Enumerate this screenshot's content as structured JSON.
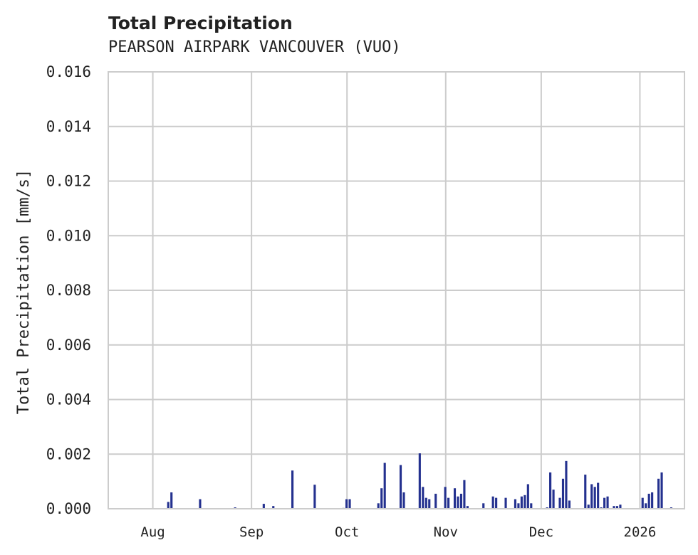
{
  "chart_data": {
    "type": "bar",
    "title": "Total Precipitation",
    "subtitle": "PEARSON AIRPARK  VANCOUVER (VUO)",
    "xlabel": "",
    "ylabel": "Total Precipitation [mm/s]",
    "ylim": [
      0,
      0.016
    ],
    "grid": true,
    "legend": null,
    "color": "#24318f",
    "yticks": [
      "0.000",
      "0.002",
      "0.004",
      "0.006",
      "0.008",
      "0.010",
      "0.012",
      "0.014",
      "0.016"
    ],
    "xticks": [
      "Aug",
      "Sep",
      "Oct",
      "Nov",
      "Dec",
      "2026"
    ],
    "x_domain": [
      "2025-07-18",
      "2026-01-15"
    ],
    "series": [
      {
        "name": "Total Precipitation",
        "points": [
          {
            "date": "2025-08-06",
            "value": 0.00025
          },
          {
            "date": "2025-08-07",
            "value": 0.0006
          },
          {
            "date": "2025-08-16",
            "value": 0.00035
          },
          {
            "date": "2025-08-27",
            "value": 5e-05
          },
          {
            "date": "2025-09-05",
            "value": 0.00018
          },
          {
            "date": "2025-09-08",
            "value": 0.0001
          },
          {
            "date": "2025-09-14",
            "value": 0.0014
          },
          {
            "date": "2025-09-21",
            "value": 0.00088
          },
          {
            "date": "2025-09-30",
            "value": 3e-05
          },
          {
            "date": "2025-10-01",
            "value": 0.00035
          },
          {
            "date": "2025-10-02",
            "value": 0.00035
          },
          {
            "date": "2025-10-11",
            "value": 0.0002
          },
          {
            "date": "2025-10-12",
            "value": 0.00075
          },
          {
            "date": "2025-10-13",
            "value": 0.00168
          },
          {
            "date": "2025-10-18",
            "value": 0.0016
          },
          {
            "date": "2025-10-19",
            "value": 0.0006
          },
          {
            "date": "2025-10-24",
            "value": 0.00203
          },
          {
            "date": "2025-10-25",
            "value": 0.0008
          },
          {
            "date": "2025-10-26",
            "value": 0.0004
          },
          {
            "date": "2025-10-27",
            "value": 0.00035
          },
          {
            "date": "2025-10-29",
            "value": 0.00055
          },
          {
            "date": "2025-11-01",
            "value": 0.0008
          },
          {
            "date": "2025-11-02",
            "value": 0.0004
          },
          {
            "date": "2025-11-04",
            "value": 0.00075
          },
          {
            "date": "2025-11-05",
            "value": 0.00045
          },
          {
            "date": "2025-11-06",
            "value": 0.00055
          },
          {
            "date": "2025-11-07",
            "value": 0.00105
          },
          {
            "date": "2025-11-08",
            "value": 0.0001
          },
          {
            "date": "2025-11-13",
            "value": 0.0002
          },
          {
            "date": "2025-11-16",
            "value": 0.00045
          },
          {
            "date": "2025-11-17",
            "value": 0.0004
          },
          {
            "date": "2025-11-20",
            "value": 0.0004
          },
          {
            "date": "2025-11-23",
            "value": 0.00035
          },
          {
            "date": "2025-11-24",
            "value": 0.0002
          },
          {
            "date": "2025-11-25",
            "value": 0.00045
          },
          {
            "date": "2025-11-26",
            "value": 0.0005
          },
          {
            "date": "2025-11-27",
            "value": 0.0009
          },
          {
            "date": "2025-11-28",
            "value": 0.0002
          },
          {
            "date": "2025-12-03",
            "value": 5e-05
          },
          {
            "date": "2025-12-04",
            "value": 0.00133
          },
          {
            "date": "2025-12-05",
            "value": 0.0007
          },
          {
            "date": "2025-12-07",
            "value": 0.0004
          },
          {
            "date": "2025-12-08",
            "value": 0.0011
          },
          {
            "date": "2025-12-09",
            "value": 0.00175
          },
          {
            "date": "2025-12-10",
            "value": 0.0003
          },
          {
            "date": "2025-12-15",
            "value": 0.00125
          },
          {
            "date": "2025-12-16",
            "value": 0.00015
          },
          {
            "date": "2025-12-17",
            "value": 0.0009
          },
          {
            "date": "2025-12-18",
            "value": 0.0008
          },
          {
            "date": "2025-12-19",
            "value": 0.00095
          },
          {
            "date": "2025-12-20",
            "value": 5e-05
          },
          {
            "date": "2025-12-21",
            "value": 0.0004
          },
          {
            "date": "2025-12-22",
            "value": 0.00045
          },
          {
            "date": "2025-12-24",
            "value": 0.0001
          },
          {
            "date": "2025-12-25",
            "value": 0.0001
          },
          {
            "date": "2025-12-26",
            "value": 0.00015
          },
          {
            "date": "2026-01-02",
            "value": 0.0004
          },
          {
            "date": "2026-01-03",
            "value": 0.0002
          },
          {
            "date": "2026-01-04",
            "value": 0.00055
          },
          {
            "date": "2026-01-05",
            "value": 0.0006
          },
          {
            "date": "2026-01-07",
            "value": 0.0011
          },
          {
            "date": "2026-01-08",
            "value": 0.00133
          },
          {
            "date": "2026-01-11",
            "value": 5e-05
          }
        ]
      }
    ]
  }
}
